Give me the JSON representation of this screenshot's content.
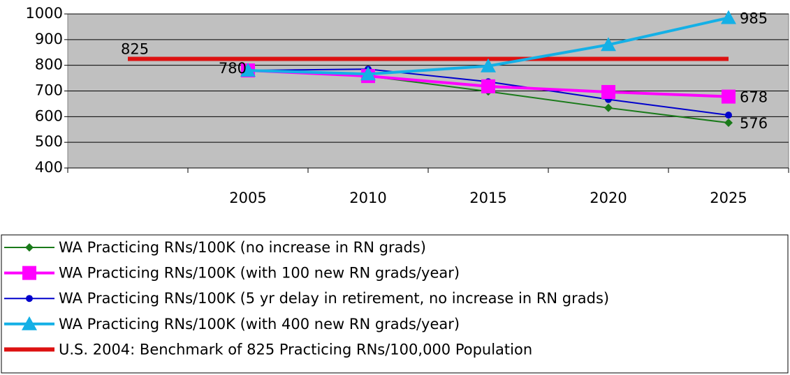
{
  "chart_data": {
    "type": "line",
    "categories": [
      null,
      "2005",
      "2010",
      "2015",
      "2020",
      "2025"
    ],
    "ylim": [
      400,
      1000
    ],
    "yticks": [
      400,
      500,
      600,
      700,
      800,
      900,
      1000
    ],
    "grid": true,
    "legend": "bottom",
    "series": [
      {
        "name": "WA Practicing RNs/100K (no increase in RN grads)",
        "color": "#1a7a1a",
        "marker": "diamond",
        "values": [
          null,
          780,
          758,
          698,
          634,
          576
        ],
        "value_labels": [
          null,
          null,
          null,
          null,
          null,
          "576"
        ]
      },
      {
        "name": "WA Practicing RNs/100K (with 100 new RN grads/year)",
        "color": "#ff00ff",
        "marker": "square",
        "values": [
          null,
          780,
          758,
          718,
          696,
          678
        ],
        "value_labels": [
          null,
          null,
          null,
          null,
          null,
          "678"
        ]
      },
      {
        "name": "WA Practicing RNs/100K (5 yr delay in retirement, no increase in RN grads)",
        "color": "#0000cc",
        "marker": "circle",
        "values": [
          null,
          780,
          785,
          736,
          667,
          606
        ]
      },
      {
        "name": "WA Practicing RNs/100K (with 400 new RN grads/year)",
        "color": "#14b0e6",
        "marker": "triangle",
        "values": [
          null,
          780,
          766,
          797,
          880,
          985
        ],
        "value_labels": [
          null,
          "780",
          null,
          null,
          null,
          "985"
        ]
      },
      {
        "name": "U.S. 2004: Benchmark of 825 Practicing RNs/100,000 Population",
        "color": "#dd1111",
        "marker": "none",
        "values": [
          825,
          825,
          825,
          825,
          825,
          825
        ],
        "value_labels": [
          "825",
          null,
          null,
          null,
          null,
          null
        ]
      }
    ]
  }
}
